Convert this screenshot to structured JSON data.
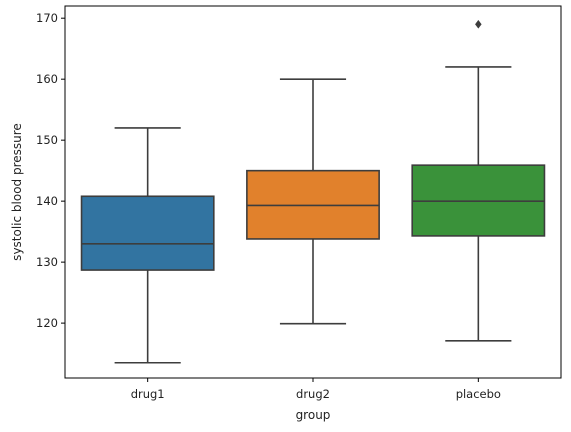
{
  "chart_data": {
    "type": "box",
    "xlabel": "group",
    "ylabel": "systolic blood pressure",
    "ylim": [
      111,
      172
    ],
    "yticks": [
      120,
      130,
      140,
      150,
      160,
      170
    ],
    "grid": false,
    "categories": [
      "drug1",
      "drug2",
      "placebo"
    ],
    "boxes": [
      {
        "category": "drug1",
        "whisker_low": 113.5,
        "q1": 128.7,
        "median": 133.0,
        "q3": 140.8,
        "whisker_high": 152.0,
        "outliers": [],
        "color": "#3274a1"
      },
      {
        "category": "drug2",
        "whisker_low": 119.9,
        "q1": 133.8,
        "median": 139.3,
        "q3": 145.0,
        "whisker_high": 160.0,
        "outliers": [],
        "color": "#e1812c"
      },
      {
        "category": "placebo",
        "whisker_low": 117.1,
        "q1": 134.3,
        "median": 140.0,
        "q3": 145.9,
        "whisker_high": 162.0,
        "outliers": [
          169.0
        ],
        "color": "#3a923a"
      }
    ],
    "line_color": "#3d3d3d"
  }
}
